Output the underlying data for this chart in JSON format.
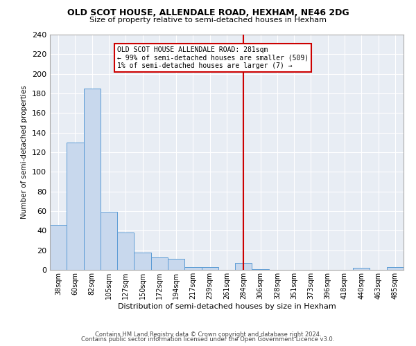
{
  "title": "OLD SCOT HOUSE, ALLENDALE ROAD, HEXHAM, NE46 2DG",
  "subtitle": "Size of property relative to semi-detached houses in Hexham",
  "xlabel": "Distribution of semi-detached houses by size in Hexham",
  "ylabel": "Number of semi-detached properties",
  "bin_labels": [
    "38sqm",
    "60sqm",
    "82sqm",
    "105sqm",
    "127sqm",
    "150sqm",
    "172sqm",
    "194sqm",
    "217sqm",
    "239sqm",
    "261sqm",
    "284sqm",
    "306sqm",
    "328sqm",
    "351sqm",
    "373sqm",
    "396sqm",
    "418sqm",
    "440sqm",
    "463sqm",
    "485sqm"
  ],
  "bar_heights": [
    46,
    130,
    185,
    59,
    38,
    18,
    13,
    11,
    3,
    3,
    0,
    7,
    1,
    0,
    0,
    0,
    0,
    0,
    2,
    0,
    3
  ],
  "bar_color": "#c8d8ed",
  "bar_edge_color": "#5b9bd5",
  "vline_x_index": 11,
  "vline_color": "#cc0000",
  "annotation_title": "OLD SCOT HOUSE ALLENDALE ROAD: 281sqm",
  "annotation_line1": "← 99% of semi-detached houses are smaller (509)",
  "annotation_line2": "1% of semi-detached houses are larger (7) →",
  "annotation_box_color": "#cc0000",
  "ylim": [
    0,
    240
  ],
  "yticks": [
    0,
    20,
    40,
    60,
    80,
    100,
    120,
    140,
    160,
    180,
    200,
    220,
    240
  ],
  "footer_line1": "Contains HM Land Registry data © Crown copyright and database right 2024.",
  "footer_line2": "Contains public sector information licensed under the Open Government Licence v3.0.",
  "plot_bg_color": "#e8edf4",
  "figure_bg_color": "#ffffff",
  "grid_color": "#ffffff"
}
